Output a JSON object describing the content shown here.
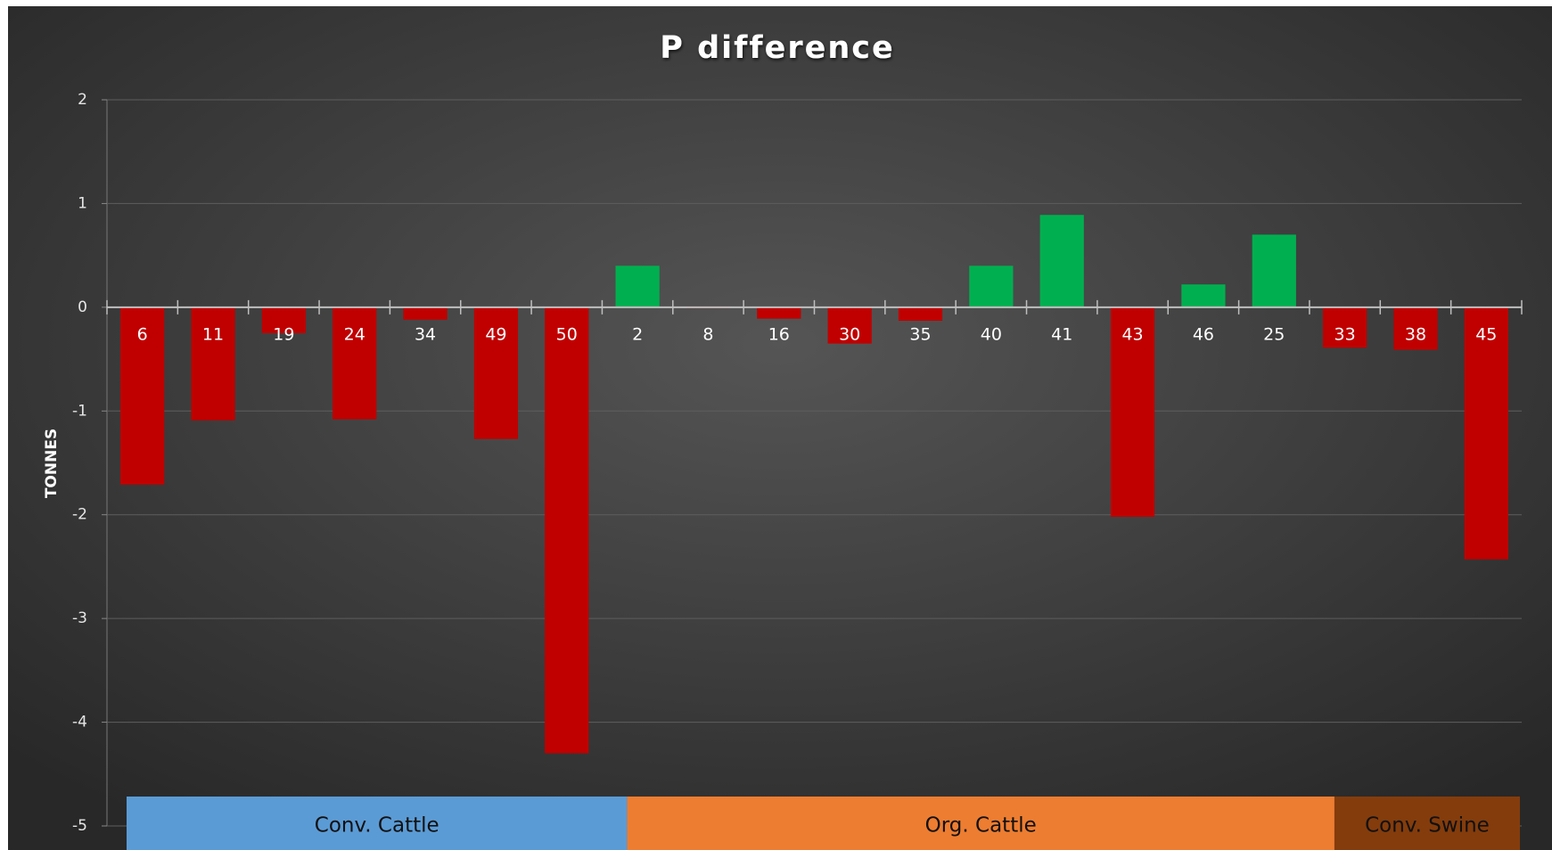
{
  "chart_data": {
    "type": "bar",
    "title": "P difference",
    "y_label": "TONNES",
    "categories": [
      "6",
      "11",
      "19",
      "24",
      "34",
      "49",
      "50",
      "2",
      "8",
      "16",
      "30",
      "35",
      "40",
      "41",
      "43",
      "46",
      "25",
      "33",
      "38",
      "45"
    ],
    "values": [
      -1.71,
      -1.09,
      -0.25,
      -1.08,
      -0.12,
      -1.27,
      -4.3,
      0.4,
      -0.01,
      -0.11,
      -0.35,
      -0.13,
      0.4,
      0.89,
      -2.02,
      0.22,
      0.7,
      -0.39,
      -0.41,
      -2.43
    ],
    "positive_color": "#00b050",
    "negative_color": "#c00000",
    "ylim": [
      -5,
      2
    ],
    "yticks": [
      -5,
      -4,
      -3,
      -2,
      -1,
      0,
      1,
      2
    ],
    "grid": true,
    "groups": [
      {
        "label": "Conv. Cattle",
        "start": 0,
        "end": 6,
        "color": "#5b9bd5"
      },
      {
        "label": "Org. Cattle",
        "start": 7,
        "end": 16,
        "color": "#ed7d31"
      },
      {
        "label": "Conv. Swine",
        "start": 17,
        "end": 19,
        "color": "#843c0c"
      }
    ]
  }
}
